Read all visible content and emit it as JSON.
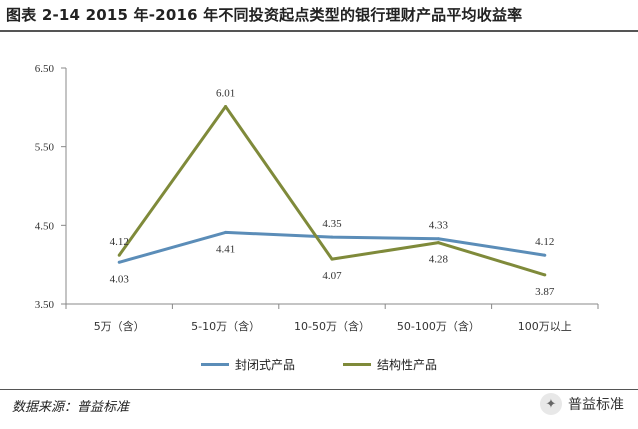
{
  "title": "图表 2-14 2015 年-2016 年不同投资起点类型的银行理财产品平均收益率",
  "source": "数据来源：普益标准",
  "brand": "普益标准",
  "colors": {
    "series1": "#5b8db8",
    "series2": "#7f8a3a",
    "grid": "#d9d9d9",
    "axis": "#888888"
  },
  "chart_data": {
    "type": "line",
    "categories": [
      "5万（含）",
      "5-10万（含）",
      "10-50万（含）",
      "50-100万（含）",
      "100万以上"
    ],
    "series": [
      {
        "name": "封闭式产品",
        "values": [
          4.03,
          4.41,
          4.35,
          4.33,
          4.12
        ],
        "labels": [
          "4.03",
          "4.41",
          "4.35",
          "4.33",
          "4.12"
        ]
      },
      {
        "name": "结构性产品",
        "values": [
          4.12,
          6.01,
          4.07,
          4.28,
          3.87
        ],
        "labels": [
          "4.12",
          "6.01",
          "4.07",
          "4.28",
          "3.87"
        ]
      }
    ],
    "yticks": [
      "6.50",
      "5.50",
      "4.50",
      "3.50"
    ],
    "ylim": [
      3.5,
      6.5
    ],
    "grid": false,
    "legend_position": "bottom"
  }
}
